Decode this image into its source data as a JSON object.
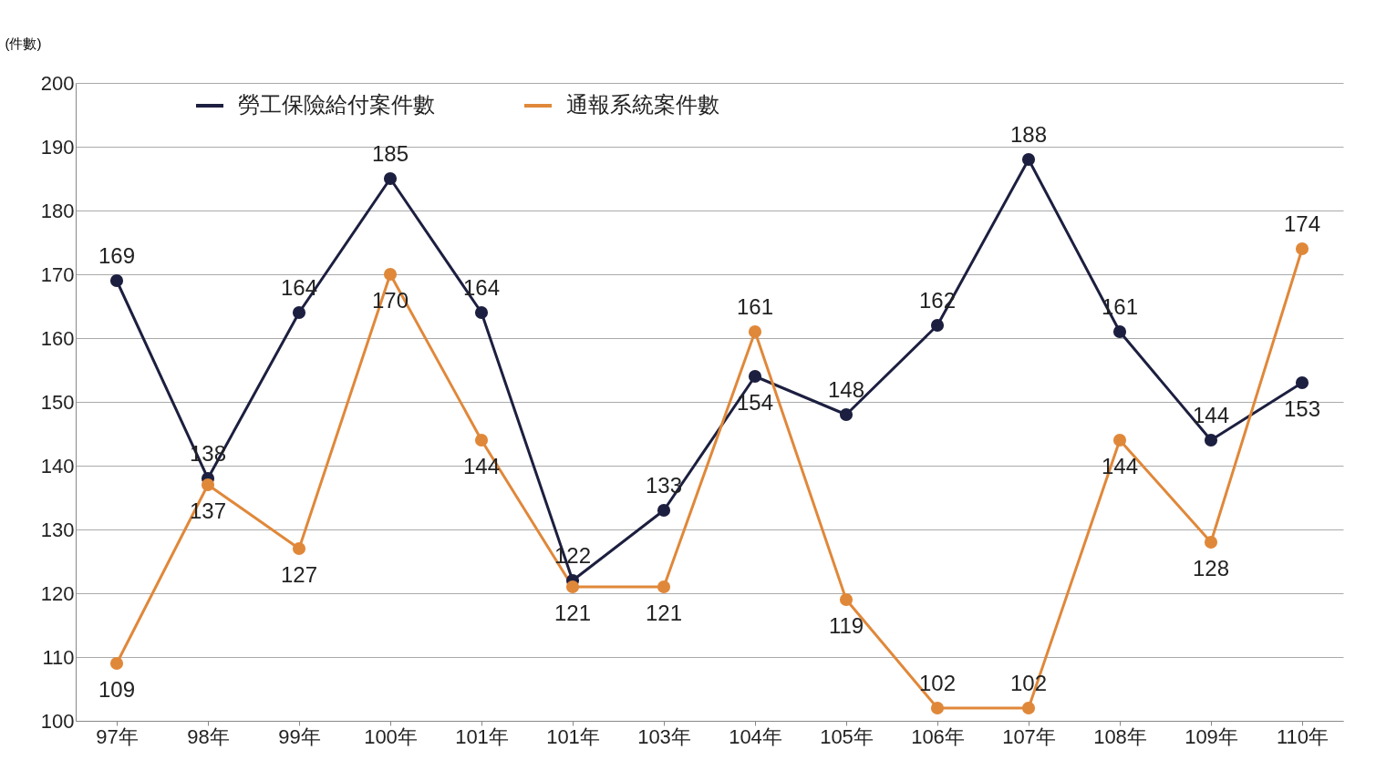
{
  "chart_data": {
    "type": "line",
    "ylabel": "(件數)",
    "categories": [
      "97年",
      "98年",
      "99年",
      "100年",
      "101年",
      "101年",
      "103年",
      "104年",
      "105年",
      "106年",
      "107年",
      "108年",
      "109年",
      "110年"
    ],
    "series": [
      {
        "name": "勞工保險給付案件數",
        "color": "#1c1f3f",
        "values": [
          169,
          138,
          164,
          185,
          164,
          122,
          133,
          154,
          148,
          162,
          188,
          161,
          144,
          153
        ]
      },
      {
        "name": "通報系統案件數",
        "color": "#e0883a",
        "values": [
          109,
          137,
          127,
          170,
          144,
          121,
          121,
          161,
          119,
          102,
          102,
          144,
          128,
          174
        ]
      }
    ],
    "ylim": [
      100,
      200
    ],
    "yticks": [
      100,
      110,
      120,
      130,
      140,
      150,
      160,
      170,
      180,
      190,
      200
    ],
    "grid": "y",
    "legend": "top left",
    "marker": "circle",
    "line_style": "solid",
    "data_labels": true
  }
}
